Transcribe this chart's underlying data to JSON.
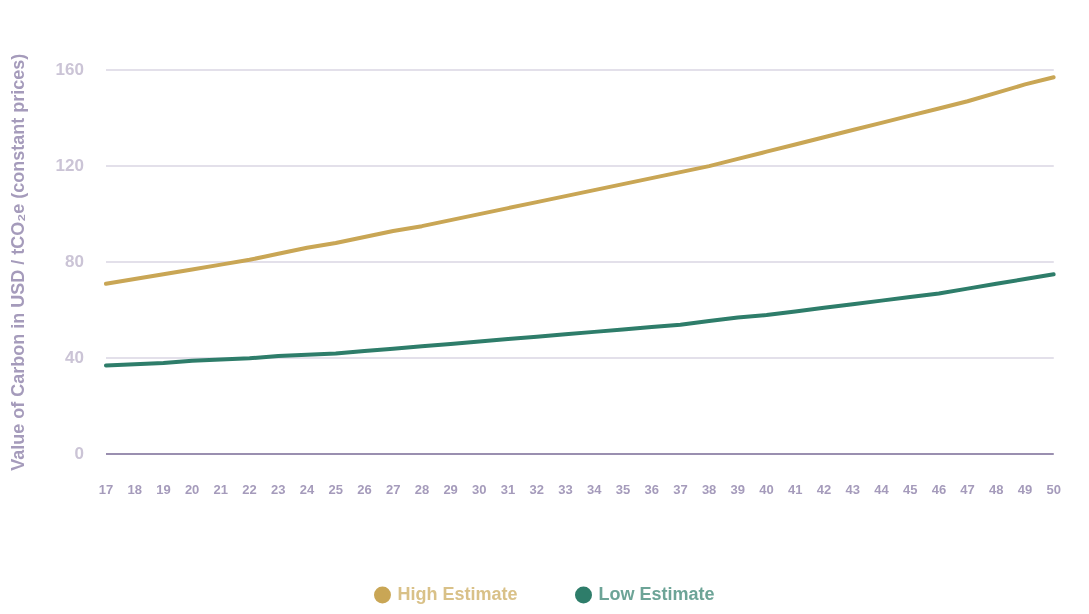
{
  "chart_data": {
    "type": "line",
    "ylabel": "Value of Carbon in USD / tCO₂e (constant prices)",
    "categories": [
      "17",
      "18",
      "19",
      "20",
      "21",
      "22",
      "23",
      "24",
      "25",
      "26",
      "27",
      "28",
      "29",
      "30",
      "31",
      "32",
      "33",
      "34",
      "35",
      "36",
      "37",
      "38",
      "39",
      "40",
      "41",
      "42",
      "43",
      "44",
      "45",
      "46",
      "47",
      "48",
      "49",
      "50"
    ],
    "series": [
      {
        "name": "High Estimate",
        "color": "#c9a655",
        "values": [
          71,
          73,
          75,
          77,
          79,
          81,
          83.5,
          86,
          88,
          90.5,
          93,
          95,
          97.5,
          100,
          102.5,
          105,
          107.5,
          110,
          112.5,
          115,
          117.5,
          120,
          123,
          126,
          129,
          132,
          135,
          138,
          141,
          144,
          147,
          150.5,
          154,
          157
        ]
      },
      {
        "name": "Low Estimate",
        "color": "#2e7d6a",
        "values": [
          37,
          37.5,
          38,
          39,
          39.5,
          40,
          41,
          41.5,
          42,
          43,
          44,
          45,
          46,
          47,
          48,
          49,
          50,
          51,
          52,
          53,
          54,
          55.5,
          57,
          58,
          59.5,
          61,
          62.5,
          64,
          65.5,
          67,
          69,
          71,
          73,
          75
        ]
      }
    ],
    "ylim": [
      0,
      160
    ],
    "yticks": [
      0,
      40,
      80,
      120,
      160
    ],
    "grid": "y",
    "legend": "bottom",
    "marker": "none",
    "line_style": "solid"
  }
}
